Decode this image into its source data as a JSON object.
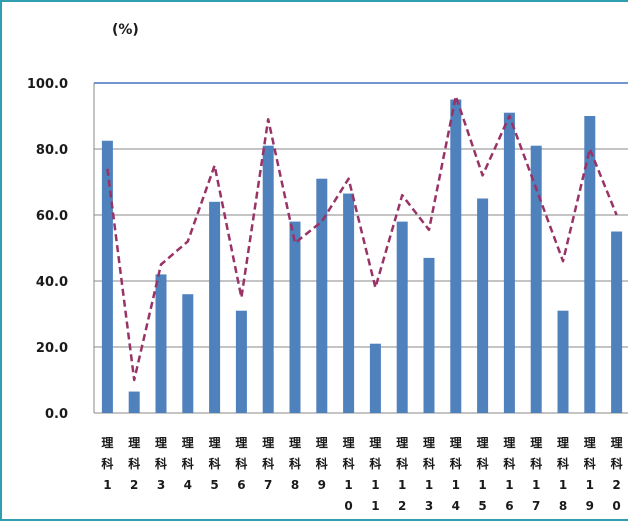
{
  "chart_data": {
    "type": "bar",
    "unit_label": "(%)",
    "ylim": [
      0,
      100
    ],
    "y_ticks": [
      "0.0",
      "20.0",
      "40.0",
      "60.0",
      "80.0",
      "100.0"
    ],
    "grid": true,
    "categories": [
      "理科1",
      "理科2",
      "理科3",
      "理科4",
      "理科5",
      "理科6",
      "理科7",
      "理科8",
      "理科9",
      "理科10",
      "理科11",
      "理科12",
      "理科13",
      "理科14",
      "理科15",
      "理科16",
      "理科17",
      "理科18",
      "理科19",
      "理科20"
    ],
    "category_lines": [
      [
        "理",
        "科",
        "1"
      ],
      [
        "理",
        "科",
        "2"
      ],
      [
        "理",
        "科",
        "3"
      ],
      [
        "理",
        "科",
        "4"
      ],
      [
        "理",
        "科",
        "5"
      ],
      [
        "理",
        "科",
        "6"
      ],
      [
        "理",
        "科",
        "7"
      ],
      [
        "理",
        "科",
        "8"
      ],
      [
        "理",
        "科",
        "9"
      ],
      [
        "理",
        "科",
        "1",
        "0"
      ],
      [
        "理",
        "科",
        "1",
        "1"
      ],
      [
        "理",
        "科",
        "1",
        "2"
      ],
      [
        "理",
        "科",
        "1",
        "3"
      ],
      [
        "理",
        "科",
        "1",
        "4"
      ],
      [
        "理",
        "科",
        "1",
        "5"
      ],
      [
        "理",
        "科",
        "1",
        "6"
      ],
      [
        "理",
        "科",
        "1",
        "7"
      ],
      [
        "理",
        "科",
        "1",
        "8"
      ],
      [
        "理",
        "科",
        "1",
        "9"
      ],
      [
        "理",
        "科",
        "2",
        "0"
      ]
    ],
    "series": [
      {
        "type": "bar",
        "color": "#4f81bd",
        "values": [
          82.5,
          6.5,
          42.0,
          36.0,
          64.0,
          31.0,
          81.0,
          58.0,
          71.0,
          66.5,
          21.0,
          58.0,
          47.0,
          95.0,
          65.0,
          91.0,
          81.0,
          31.0,
          90.0,
          55.0
        ]
      },
      {
        "type": "line",
        "style": "dashed",
        "color": "#993366",
        "values": [
          74.0,
          10.0,
          45.0,
          52.0,
          75.0,
          35.0,
          89.0,
          51.5,
          58.0,
          71.0,
          38.0,
          66.0,
          55.5,
          96.0,
          72.0,
          90.0,
          68.0,
          46.0,
          80.0,
          60.0
        ]
      }
    ],
    "colors": {
      "grid": "#8a8a8a",
      "top_gridline": "#4472c4",
      "axis": "#8a8a8a",
      "frame": "#2f9fb0"
    }
  }
}
